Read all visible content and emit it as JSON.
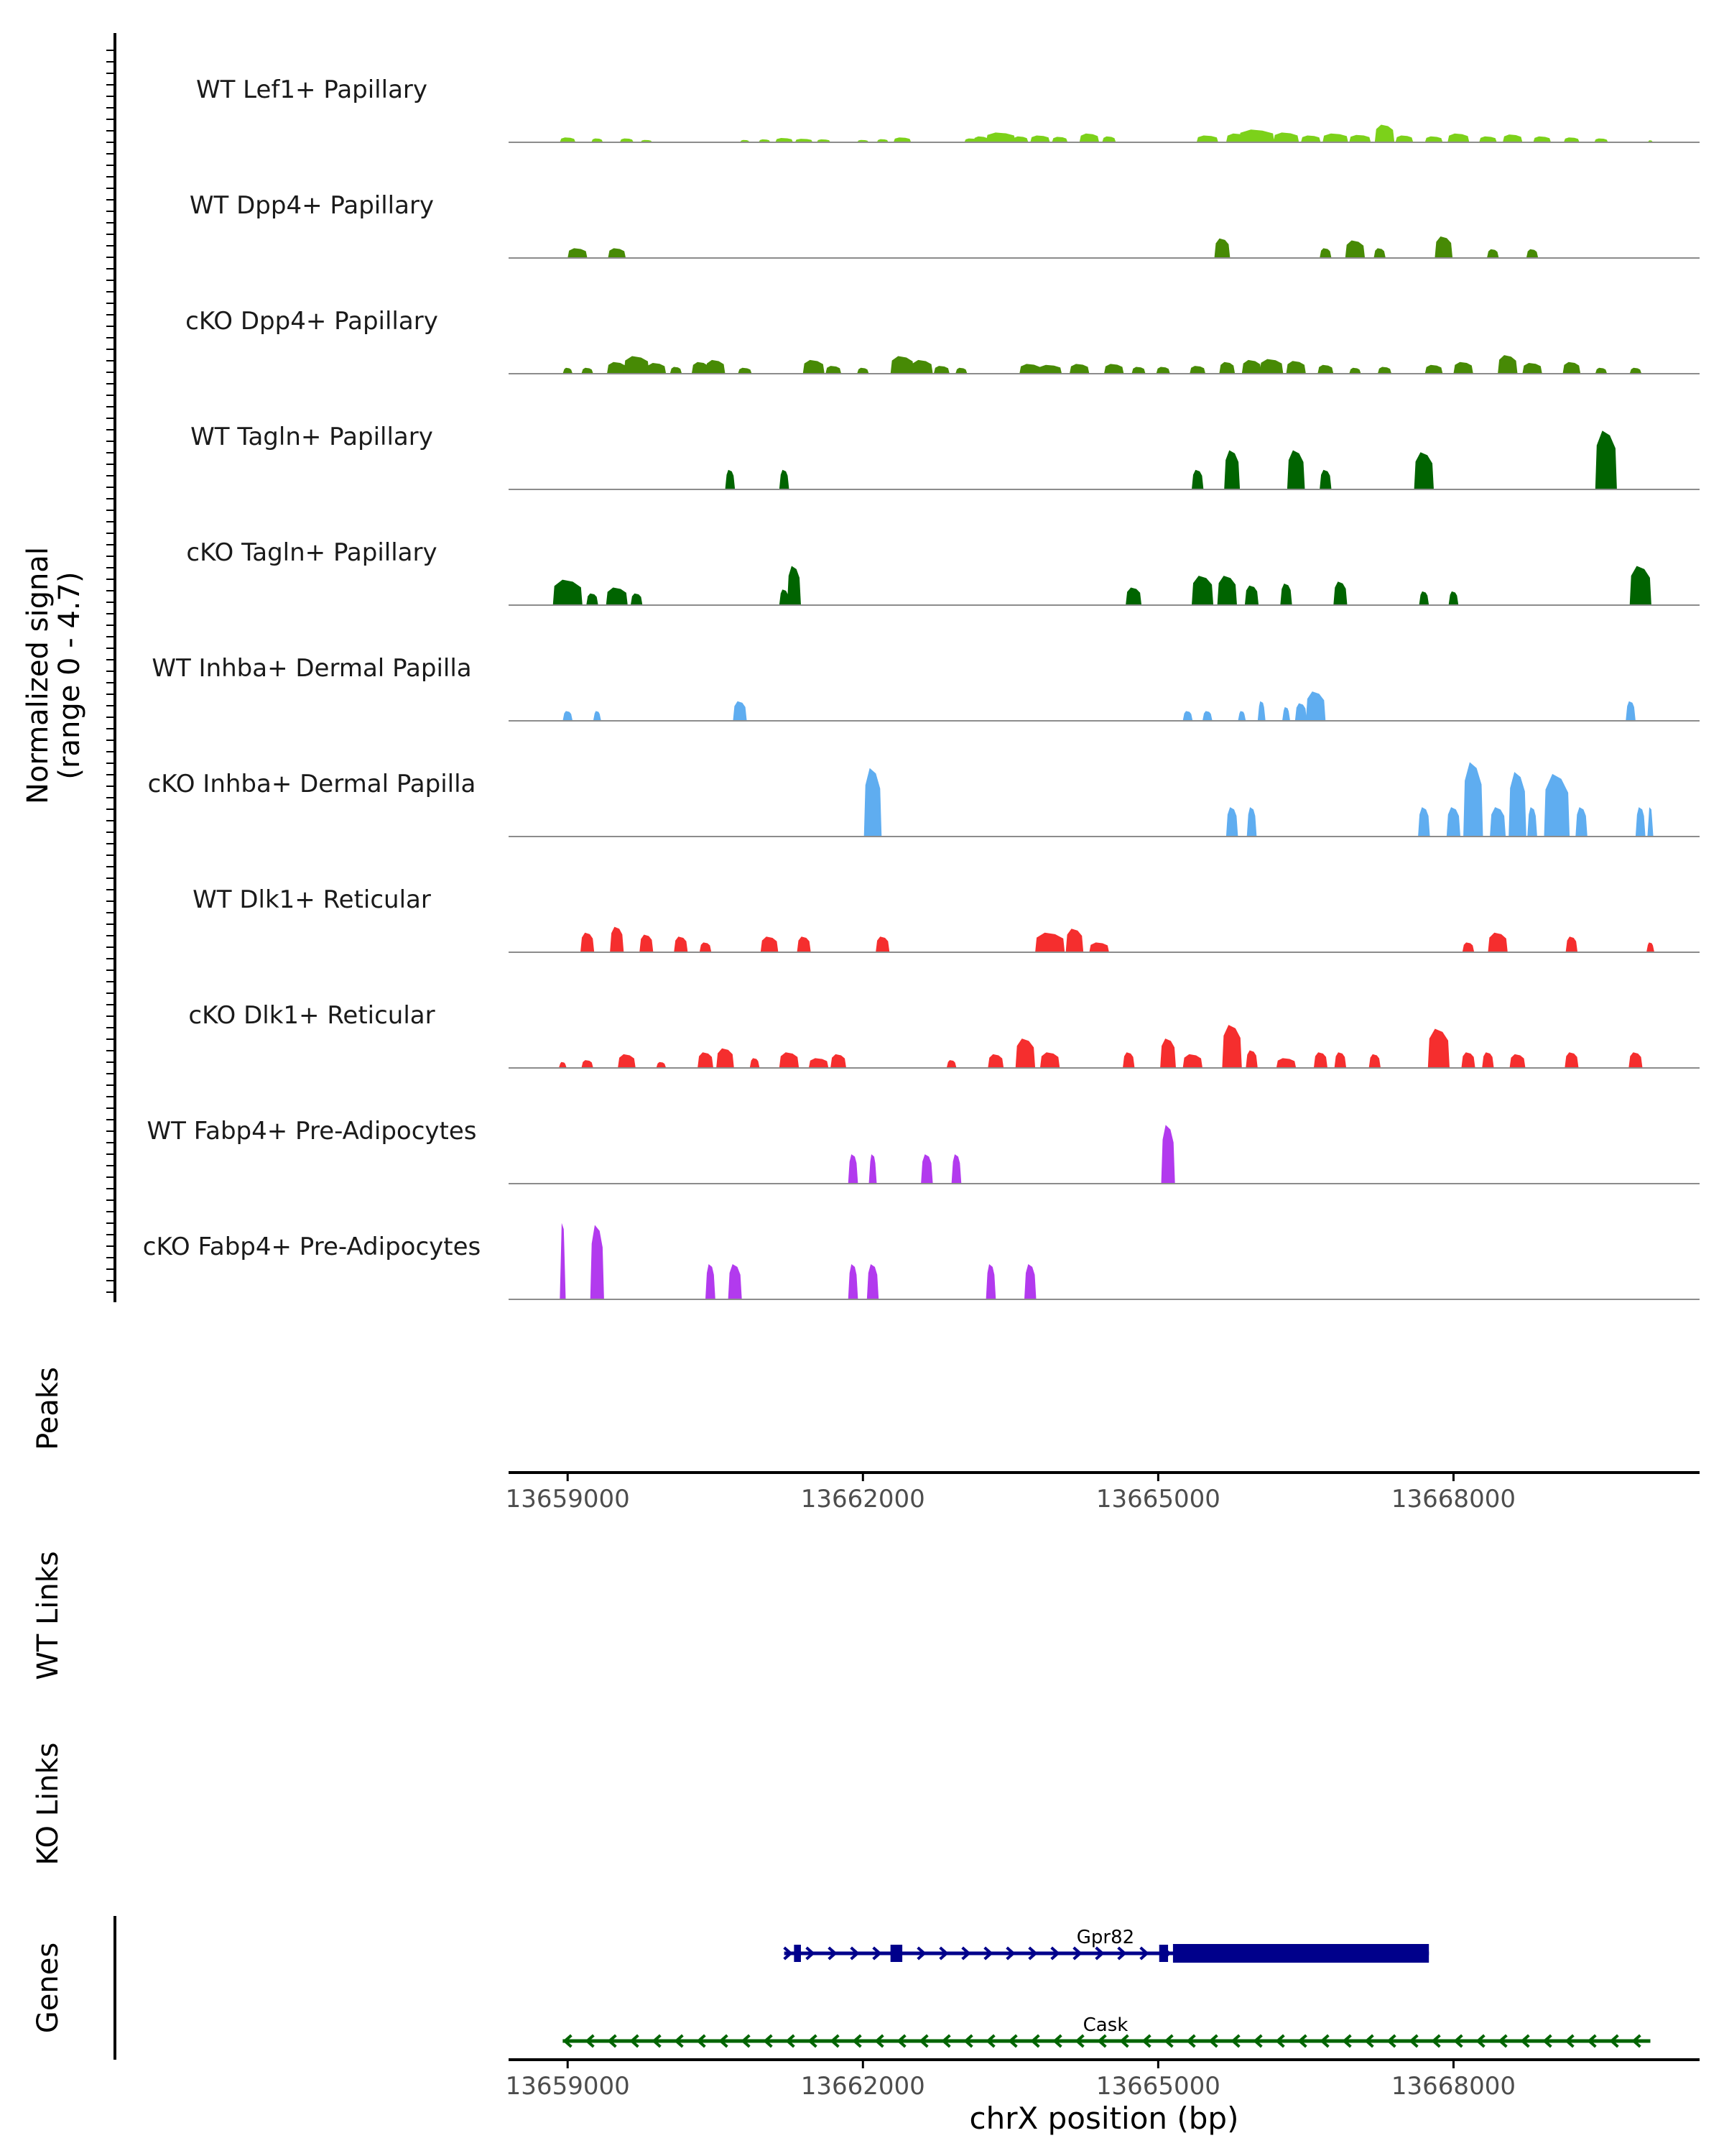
{
  "chart_data": {
    "type": "coverage",
    "ylabel": "Normalized signal",
    "ylabel_range": "(range 0 - 4.7)",
    "ylim": [
      0,
      4.7
    ],
    "xlim": [
      13658400,
      13670500
    ],
    "xlabel": "chrX position (bp)",
    "x_ticks": [
      13659000,
      13662000,
      13665000,
      13668000
    ],
    "x_tick_labels": [
      "13659000",
      "13662000",
      "13665000",
      "13668000"
    ],
    "tracks": [
      {
        "name": "WT Lef1+ Papillary",
        "color": "#7CD11A",
        "peaks": [
          [
            13659000,
            0.25,
            160
          ],
          [
            13659300,
            0.2,
            120
          ],
          [
            13659600,
            0.2,
            140
          ],
          [
            13659800,
            0.12,
            120
          ],
          [
            13660800,
            0.12,
            100
          ],
          [
            13661000,
            0.15,
            120
          ],
          [
            13661200,
            0.22,
            180
          ],
          [
            13661400,
            0.18,
            180
          ],
          [
            13661600,
            0.15,
            140
          ],
          [
            13662000,
            0.12,
            120
          ],
          [
            13662200,
            0.16,
            120
          ],
          [
            13662400,
            0.25,
            180
          ],
          [
            13663100,
            0.2,
            140
          ],
          [
            13663200,
            0.3,
            160
          ],
          [
            13663400,
            0.5,
            300
          ],
          [
            13663600,
            0.3,
            160
          ],
          [
            13663800,
            0.35,
            200
          ],
          [
            13664000,
            0.28,
            160
          ],
          [
            13664300,
            0.45,
            200
          ],
          [
            13664500,
            0.3,
            140
          ],
          [
            13665500,
            0.35,
            220
          ],
          [
            13665800,
            0.45,
            220
          ],
          [
            13666000,
            0.65,
            360
          ],
          [
            13666300,
            0.5,
            260
          ],
          [
            13666550,
            0.35,
            200
          ],
          [
            13666800,
            0.45,
            260
          ],
          [
            13667050,
            0.38,
            220
          ],
          [
            13667300,
            0.9,
            200
          ],
          [
            13667500,
            0.35,
            180
          ],
          [
            13667800,
            0.3,
            180
          ],
          [
            13668050,
            0.45,
            220
          ],
          [
            13668350,
            0.3,
            180
          ],
          [
            13668600,
            0.4,
            200
          ],
          [
            13668900,
            0.3,
            180
          ],
          [
            13669200,
            0.25,
            160
          ],
          [
            13669500,
            0.2,
            140
          ],
          [
            13670000,
            0.1,
            60
          ]
        ]
      },
      {
        "name": "WT Dpp4+ Papillary",
        "color": "#478A05",
        "peaks": [
          [
            13659100,
            0.5,
            200
          ],
          [
            13659500,
            0.5,
            180
          ],
          [
            13665650,
            1.0,
            160
          ],
          [
            13666700,
            0.5,
            120
          ],
          [
            13667000,
            0.9,
            200
          ],
          [
            13667250,
            0.5,
            120
          ],
          [
            13667900,
            1.1,
            180
          ],
          [
            13668400,
            0.45,
            120
          ],
          [
            13668800,
            0.45,
            120
          ]
        ]
      },
      {
        "name": "cKO Dpp4+ Papillary",
        "color": "#478A05",
        "peaks": [
          [
            13659000,
            0.3,
            100
          ],
          [
            13659200,
            0.3,
            120
          ],
          [
            13659500,
            0.6,
            200
          ],
          [
            13659700,
            0.9,
            260
          ],
          [
            13659900,
            0.55,
            200
          ],
          [
            13660100,
            0.35,
            120
          ],
          [
            13660350,
            0.6,
            180
          ],
          [
            13660500,
            0.7,
            200
          ],
          [
            13660800,
            0.3,
            140
          ],
          [
            13661500,
            0.7,
            220
          ],
          [
            13661700,
            0.4,
            160
          ],
          [
            13662000,
            0.3,
            120
          ],
          [
            13662400,
            0.9,
            240
          ],
          [
            13662600,
            0.7,
            220
          ],
          [
            13662800,
            0.4,
            160
          ],
          [
            13663000,
            0.3,
            120
          ],
          [
            13663700,
            0.5,
            220
          ],
          [
            13663900,
            0.45,
            240
          ],
          [
            13664200,
            0.5,
            200
          ],
          [
            13664550,
            0.5,
            200
          ],
          [
            13664800,
            0.35,
            140
          ],
          [
            13665050,
            0.35,
            140
          ],
          [
            13665400,
            0.4,
            160
          ],
          [
            13665700,
            0.6,
            160
          ],
          [
            13665950,
            0.7,
            200
          ],
          [
            13666150,
            0.75,
            240
          ],
          [
            13666400,
            0.65,
            200
          ],
          [
            13666700,
            0.45,
            160
          ],
          [
            13667000,
            0.3,
            120
          ],
          [
            13667300,
            0.35,
            140
          ],
          [
            13667800,
            0.45,
            180
          ],
          [
            13668100,
            0.6,
            200
          ],
          [
            13668550,
            0.95,
            200
          ],
          [
            13668800,
            0.55,
            200
          ],
          [
            13669200,
            0.6,
            180
          ],
          [
            13669500,
            0.3,
            120
          ],
          [
            13669850,
            0.3,
            120
          ]
        ]
      },
      {
        "name": "WT Tagln+ Papillary",
        "color": "#006400",
        "peaks": [
          [
            13660650,
            1.0,
            100
          ],
          [
            13661200,
            1.0,
            100
          ],
          [
            13665400,
            1.0,
            120
          ],
          [
            13665750,
            2.0,
            160
          ],
          [
            13666400,
            2.0,
            180
          ],
          [
            13666700,
            1.0,
            120
          ],
          [
            13667700,
            1.9,
            200
          ],
          [
            13669550,
            3.0,
            220
          ]
        ]
      },
      {
        "name": "cKO Tagln+ Papillary",
        "color": "#006400",
        "peaks": [
          [
            13659000,
            1.3,
            300
          ],
          [
            13659250,
            0.6,
            120
          ],
          [
            13659500,
            0.9,
            220
          ],
          [
            13659700,
            0.6,
            120
          ],
          [
            13661300,
            2.0,
            140
          ],
          [
            13661200,
            0.8,
            100
          ],
          [
            13664750,
            0.9,
            160
          ],
          [
            13665450,
            1.5,
            220
          ],
          [
            13665700,
            1.5,
            200
          ],
          [
            13665950,
            1.0,
            140
          ],
          [
            13666300,
            1.1,
            120
          ],
          [
            13666850,
            1.2,
            140
          ],
          [
            13667700,
            0.7,
            100
          ],
          [
            13668000,
            0.7,
            100
          ],
          [
            13669900,
            2.0,
            220
          ]
        ]
      },
      {
        "name": "WT Inhba+ Dermal Papilla",
        "color": "#5FADF0",
        "peaks": [
          [
            13659000,
            0.5,
            100
          ],
          [
            13659300,
            0.5,
            80
          ],
          [
            13660750,
            1.0,
            140
          ],
          [
            13665300,
            0.5,
            100
          ],
          [
            13665500,
            0.5,
            100
          ],
          [
            13665850,
            0.5,
            80
          ],
          [
            13666050,
            1.0,
            80
          ],
          [
            13666300,
            0.7,
            80
          ],
          [
            13666600,
            1.5,
            200
          ],
          [
            13666450,
            0.9,
            120
          ],
          [
            13669800,
            1.0,
            100
          ]
        ]
      },
      {
        "name": "cKO Inhba+ Dermal Papilla",
        "color": "#5FADF0",
        "peaks": [
          [
            13662100,
            3.5,
            180
          ],
          [
            13665750,
            1.5,
            120
          ],
          [
            13665950,
            1.5,
            100
          ],
          [
            13667700,
            1.5,
            120
          ],
          [
            13668000,
            1.5,
            140
          ],
          [
            13668200,
            3.8,
            200
          ],
          [
            13668450,
            1.5,
            160
          ],
          [
            13668650,
            3.3,
            180
          ],
          [
            13668800,
            1.5,
            100
          ],
          [
            13669050,
            3.2,
            260
          ],
          [
            13669300,
            1.5,
            120
          ],
          [
            13669900,
            1.5,
            100
          ],
          [
            13670000,
            1.5,
            60
          ]
        ]
      },
      {
        "name": "WT Dlk1+ Reticular",
        "color": "#F52E2E",
        "peaks": [
          [
            13659200,
            1.0,
            140
          ],
          [
            13659500,
            1.3,
            140
          ],
          [
            13659800,
            0.9,
            140
          ],
          [
            13660150,
            0.8,
            140
          ],
          [
            13660400,
            0.5,
            120
          ],
          [
            13661050,
            0.8,
            180
          ],
          [
            13661400,
            0.8,
            140
          ],
          [
            13662200,
            0.8,
            140
          ],
          [
            13663900,
            1.0,
            300
          ],
          [
            13664150,
            1.2,
            180
          ],
          [
            13664400,
            0.5,
            200
          ],
          [
            13668150,
            0.5,
            120
          ],
          [
            13668450,
            1.0,
            200
          ],
          [
            13669200,
            0.8,
            120
          ],
          [
            13670000,
            0.5,
            80
          ]
        ]
      },
      {
        "name": "cKO Dlk1+ Reticular",
        "color": "#F52E2E",
        "peaks": [
          [
            13658950,
            0.3,
            80
          ],
          [
            13659200,
            0.4,
            120
          ],
          [
            13659600,
            0.7,
            180
          ],
          [
            13659950,
            0.3,
            100
          ],
          [
            13660400,
            0.8,
            160
          ],
          [
            13660600,
            1.0,
            180
          ],
          [
            13660900,
            0.5,
            100
          ],
          [
            13661250,
            0.8,
            200
          ],
          [
            13661550,
            0.5,
            200
          ],
          [
            13661750,
            0.7,
            160
          ],
          [
            13662900,
            0.4,
            100
          ],
          [
            13663350,
            0.7,
            160
          ],
          [
            13663650,
            1.5,
            200
          ],
          [
            13663900,
            0.8,
            200
          ],
          [
            13664700,
            0.8,
            120
          ],
          [
            13665100,
            1.5,
            160
          ],
          [
            13665350,
            0.7,
            200
          ],
          [
            13665750,
            2.2,
            200
          ],
          [
            13665950,
            0.9,
            120
          ],
          [
            13666300,
            0.5,
            200
          ],
          [
            13666650,
            0.8,
            140
          ],
          [
            13666850,
            0.8,
            120
          ],
          [
            13667200,
            0.7,
            120
          ],
          [
            13667850,
            2.0,
            220
          ],
          [
            13668150,
            0.8,
            140
          ],
          [
            13668350,
            0.8,
            120
          ],
          [
            13668650,
            0.7,
            160
          ],
          [
            13669200,
            0.8,
            140
          ],
          [
            13669850,
            0.8,
            140
          ]
        ]
      },
      {
        "name": "WT Fabp4+ Pre-Adipocytes",
        "color": "#B23AEE",
        "peaks": [
          [
            13661900,
            1.5,
            100
          ],
          [
            13662100,
            1.5,
            80
          ],
          [
            13662650,
            1.5,
            120
          ],
          [
            13662950,
            1.5,
            100
          ],
          [
            13665100,
            3.0,
            140
          ]
        ]
      },
      {
        "name": "cKO Fabp4+ Pre-Adipocytes",
        "color": "#B23AEE",
        "peaks": [
          [
            13658950,
            3.9,
            60
          ],
          [
            13659300,
            3.8,
            140
          ],
          [
            13660450,
            1.8,
            100
          ],
          [
            13660700,
            1.8,
            140
          ],
          [
            13661900,
            1.8,
            100
          ],
          [
            13662100,
            1.8,
            120
          ],
          [
            13663300,
            1.8,
            100
          ],
          [
            13663700,
            1.8,
            120
          ]
        ]
      }
    ],
    "sections": {
      "peaks_label": "Peaks",
      "wt_links_label": "WT Links",
      "ko_links_label": "KO Links",
      "genes_label": "Genes"
    },
    "genes": [
      {
        "name": "Gpr82",
        "strand": "+",
        "start": 13661200,
        "end": 13667750,
        "color": "#00008B",
        "exons": [
          [
            13661300,
            13661370
          ],
          [
            13662280,
            13662400
          ],
          [
            13665010,
            13665100
          ],
          [
            13665150,
            13667750
          ]
        ]
      },
      {
        "name": "Cask",
        "strand": "-",
        "start": 13658950,
        "end": 13670000,
        "color": "#006400",
        "exons": []
      }
    ]
  }
}
